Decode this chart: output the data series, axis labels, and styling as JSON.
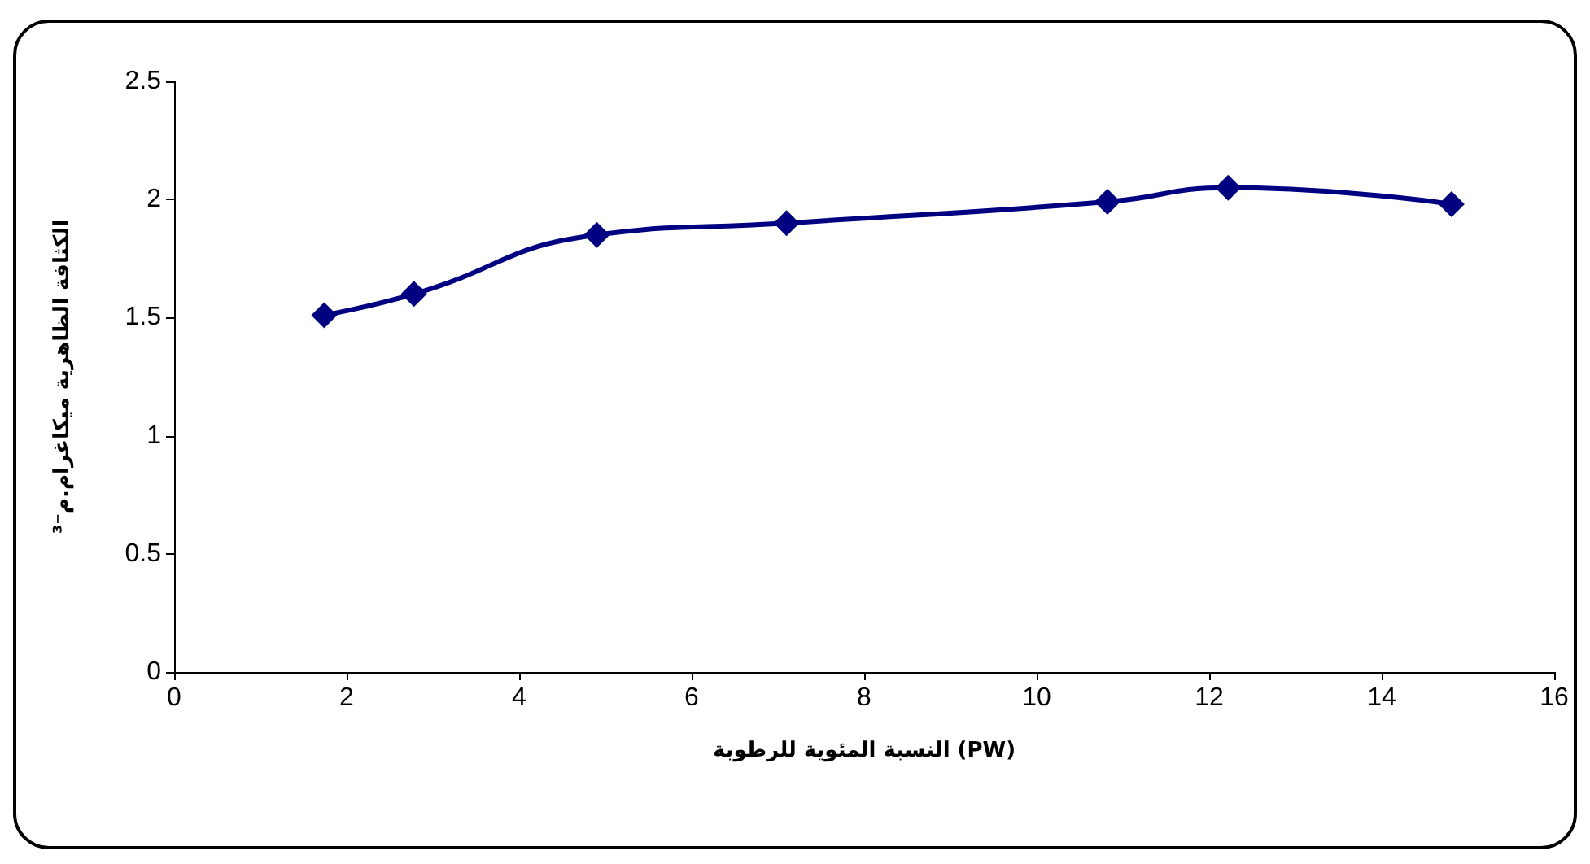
{
  "chart_data": {
    "type": "line",
    "xlabel": "النسبة المئوية للرطوبة (PW)",
    "ylabel": "الكثافة الظاهرية ميكاغرام.م⁻³",
    "x": [
      1.74,
      2.78,
      4.9,
      7.1,
      10.82,
      12.22,
      14.81
    ],
    "series": [
      {
        "color": "#000080",
        "values": [
          1.51,
          1.6,
          1.85,
          1.9,
          1.99,
          2.05,
          1.98
        ]
      }
    ],
    "xlim": [
      0,
      16
    ],
    "xticks": [
      0,
      2,
      4,
      6,
      8,
      10,
      12,
      14,
      16
    ],
    "ylim": [
      0,
      2.5
    ],
    "yticks": [
      0,
      0.5,
      1,
      1.5,
      2,
      2.5
    ],
    "grid": false,
    "marker": "diamond",
    "line_style": "solid"
  }
}
